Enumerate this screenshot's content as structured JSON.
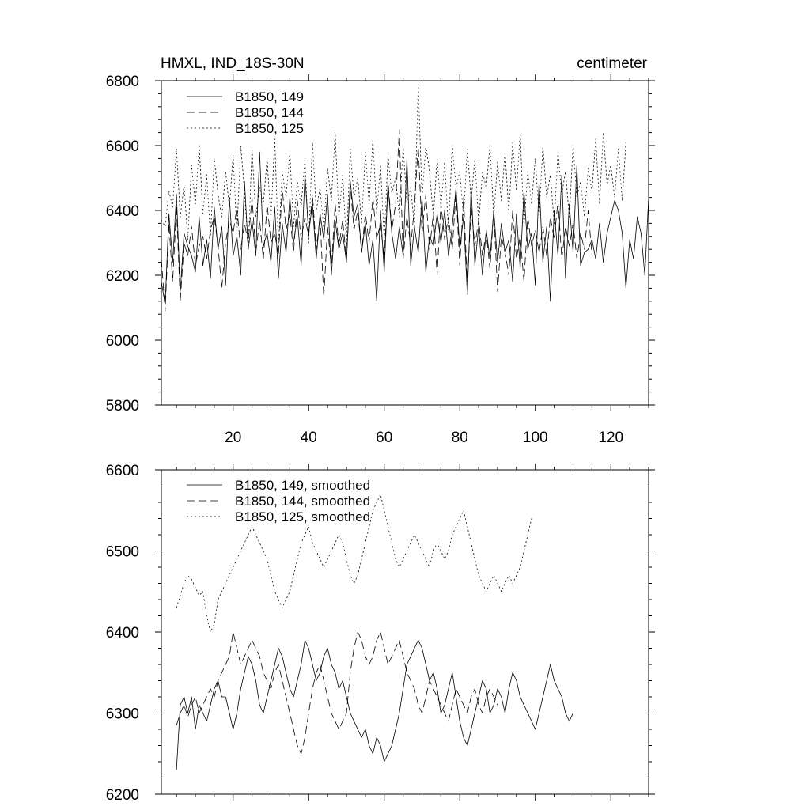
{
  "chart_data": [
    {
      "type": "line",
      "title_left": "HMXL, IND_18S-30N",
      "title_right": "centimeter",
      "xlim": [
        1,
        130
      ],
      "ylim": [
        5800,
        6800
      ],
      "xticks": [
        20,
        40,
        60,
        80,
        100,
        120
      ],
      "yticks": [
        5800,
        6000,
        6200,
        6400,
        6600,
        6800
      ],
      "series": [
        {
          "name": "B1850, 149",
          "style": "solid",
          "x_start": 1,
          "values": [
            6180,
            6110,
            6390,
            6240,
            6450,
            6150,
            6330,
            6290,
            6260,
            6210,
            6380,
            6230,
            6310,
            6190,
            6410,
            6280,
            6350,
            6170,
            6440,
            6260,
            6320,
            6200,
            6490,
            6280,
            6370,
            6260,
            6580,
            6290,
            6330,
            6240,
            6410,
            6190,
            6360,
            6270,
            6440,
            6300,
            6380,
            6230,
            6510,
            6330,
            6420,
            6250,
            6390,
            6310,
            6450,
            6200,
            6370,
            6280,
            6330,
            6240,
            6490,
            6380,
            6420,
            6270,
            6360,
            6230,
            6310,
            6120,
            6400,
            6210,
            6480,
            6330,
            6250,
            6350,
            6260,
            6560,
            6230,
            6350,
            6270,
            6440,
            6210,
            6320,
            6290,
            6390,
            6300,
            6400,
            6260,
            6350,
            6470,
            6280,
            6380,
            6140,
            6470,
            6230,
            6350,
            6200,
            6340,
            6250,
            6400,
            6240,
            6360,
            6270,
            6310,
            6180,
            6390,
            6220,
            6460,
            6280,
            6330,
            6170,
            6490,
            6240,
            6350,
            6120,
            6400,
            6260,
            6510,
            6190,
            6420,
            6270,
            6540,
            6230,
            6270,
            6280,
            6310,
            6250,
            6360,
            6240,
            6330,
            6380,
            6430,
            6400,
            6330,
            6160,
            6310,
            6250,
            6380,
            6330,
            6200,
            6440
          ]
        },
        {
          "name": "B1850, 144",
          "style": "dashed",
          "x_start": 1,
          "values": [
            6250,
            6090,
            6360,
            6180,
            6410,
            6120,
            6300,
            6260,
            6350,
            6230,
            6290,
            6320,
            6250,
            6340,
            6380,
            6290,
            6160,
            6300,
            6370,
            6330,
            6410,
            6280,
            6360,
            6300,
            6440,
            6270,
            6370,
            6250,
            6420,
            6300,
            6330,
            6260,
            6470,
            6340,
            6390,
            6270,
            6430,
            6310,
            6380,
            6320,
            6450,
            6280,
            6380,
            6130,
            6350,
            6220,
            6420,
            6290,
            6370,
            6250,
            6480,
            6340,
            6400,
            6270,
            6390,
            6300,
            6440,
            6310,
            6360,
            6250,
            6490,
            6340,
            6420,
            6650,
            6250,
            6380,
            6290,
            6410,
            6600,
            6330,
            6450,
            6280,
            6390,
            6200,
            6420,
            6310,
            6380,
            6280,
            6460,
            6230,
            6440,
            6170,
            6410,
            6290,
            6370,
            6260,
            6330,
            6220,
            6400,
            6150,
            6320,
            6270,
            6200,
            6400,
            6250,
            6320,
            6180,
            6380,
            6290,
            6340,
            6270,
            6350,
            6260,
            6380,
            6310,
            6430,
            6250,
            6350,
            6290,
            6360,
            6250,
            6330,
            6280,
            6400,
            6260
          ]
        },
        {
          "name": "B1850, 125",
          "style": "dotted",
          "x_start": 1,
          "values": [
            6370,
            6350,
            6460,
            6410,
            6590,
            6380,
            6480,
            6310,
            6540,
            6420,
            6600,
            6390,
            6510,
            6320,
            6560,
            6450,
            6380,
            6520,
            6410,
            6570,
            6330,
            6600,
            6460,
            6280,
            6590,
            6380,
            6470,
            6420,
            6560,
            6370,
            6620,
            6290,
            6520,
            6440,
            6580,
            6350,
            6490,
            6410,
            6560,
            6300,
            6610,
            6400,
            6470,
            6340,
            6530,
            6430,
            6640,
            6380,
            6510,
            6290,
            6590,
            6440,
            6500,
            6360,
            6580,
            6420,
            6620,
            6390,
            6540,
            6310,
            6570,
            6450,
            6500,
            6380,
            6600,
            6420,
            6470,
            6350,
            6790,
            6440,
            6600,
            6520,
            6380,
            6560,
            6410,
            6550,
            6340,
            6600,
            6470,
            6520,
            6380,
            6590,
            6430,
            6560,
            6360,
            6520,
            6470,
            6600,
            6380,
            6550,
            6430,
            6580,
            6390,
            6610,
            6460,
            6640,
            6350,
            6520,
            6420,
            6560,
            6380,
            6600,
            6440,
            6510,
            6360,
            6580,
            6450,
            6520,
            6380,
            6600,
            6440,
            6490,
            6380,
            6530,
            6460,
            6620,
            6420,
            6640,
            6480,
            6540,
            6440,
            6590,
            6430,
            6610
          ]
        }
      ]
    },
    {
      "type": "line",
      "xlim": [
        1,
        130
      ],
      "ylim": [
        6200,
        6600
      ],
      "yticks": [
        6200,
        6300,
        6400,
        6500,
        6600
      ],
      "xticks": [
        20,
        40,
        60,
        80,
        100,
        120
      ],
      "series": [
        {
          "name": "B1850, 149, smoothed",
          "style": "solid",
          "x_start": 5,
          "values": [
            6230,
            6310,
            6320,
            6300,
            6320,
            6280,
            6310,
            6300,
            6290,
            6310,
            6330,
            6340,
            6320,
            6320,
            6300,
            6280,
            6300,
            6330,
            6350,
            6370,
            6360,
            6340,
            6310,
            6300,
            6320,
            6340,
            6360,
            6380,
            6370,
            6350,
            6330,
            6320,
            6340,
            6360,
            6390,
            6380,
            6360,
            6340,
            6350,
            6370,
            6380,
            6360,
            6350,
            6330,
            6340,
            6320,
            6300,
            6290,
            6280,
            6270,
            6280,
            6260,
            6250,
            6270,
            6260,
            6240,
            6250,
            6260,
            6280,
            6300,
            6330,
            6360,
            6370,
            6380,
            6390,
            6380,
            6360,
            6340,
            6350,
            6330,
            6300,
            6310,
            6330,
            6350,
            6320,
            6290,
            6270,
            6260,
            6280,
            6300,
            6320,
            6340,
            6330,
            6300,
            6310,
            6330,
            6320,
            6300,
            6330,
            6350,
            6340,
            6320,
            6310,
            6300,
            6290,
            6280,
            6300,
            6320,
            6340,
            6360,
            6340,
            6330,
            6320,
            6300,
            6290,
            6300
          ]
        },
        {
          "name": "B1850, 144, smoothed",
          "style": "dashed",
          "x_start": 5,
          "values": [
            6285,
            6300,
            6310,
            6295,
            6310,
            6320,
            6300,
            6310,
            6320,
            6330,
            6320,
            6340,
            6350,
            6360,
            6370,
            6400,
            6380,
            6360,
            6370,
            6380,
            6390,
            6380,
            6370,
            6350,
            6340,
            6330,
            6350,
            6360,
            6340,
            6320,
            6300,
            6280,
            6260,
            6250,
            6270,
            6300,
            6330,
            6350,
            6360,
            6340,
            6320,
            6300,
            6290,
            6280,
            6290,
            6300,
            6350,
            6380,
            6400,
            6390,
            6370,
            6360,
            6370,
            6390,
            6400,
            6380,
            6360,
            6370,
            6380,
            6390,
            6370,
            6350,
            6340,
            6330,
            6310,
            6300,
            6320,
            6340,
            6330,
            6320,
            6310,
            6300,
            6290,
            6310,
            6330,
            6320,
            6310,
            6300,
            6320,
            6330,
            6310,
            6300,
            6320,
            6330,
            6320,
            6310
          ]
        },
        {
          "name": "B1850, 125, smoothed",
          "style": "dotted",
          "x_start": 5,
          "values": [
            6430,
            6445,
            6460,
            6470,
            6465,
            6455,
            6445,
            6450,
            6420,
            6400,
            6410,
            6440,
            6450,
            6460,
            6470,
            6480,
            6490,
            6500,
            6510,
            6520,
            6530,
            6520,
            6510,
            6500,
            6490,
            6470,
            6450,
            6440,
            6430,
            6440,
            6450,
            6470,
            6490,
            6510,
            6520,
            6530,
            6510,
            6500,
            6490,
            6480,
            6490,
            6500,
            6510,
            6520,
            6510,
            6490,
            6470,
            6460,
            6470,
            6490,
            6510,
            6530,
            6550,
            6560,
            6570,
            6550,
            6530,
            6510,
            6490,
            6480,
            6490,
            6500,
            6510,
            6520,
            6510,
            6500,
            6490,
            6480,
            6500,
            6510,
            6500,
            6490,
            6500,
            6520,
            6530,
            6540,
            6550,
            6530,
            6510,
            6490,
            6470,
            6460,
            6450,
            6460,
            6470,
            6460,
            6450,
            6460,
            6470,
            6460,
            6470,
            6480,
            6500,
            6520,
            6540
          ]
        }
      ]
    }
  ],
  "figure": {
    "panel1_title_left": "HMXL, IND_18S-30N",
    "panel1_title_right": "centimeter"
  }
}
